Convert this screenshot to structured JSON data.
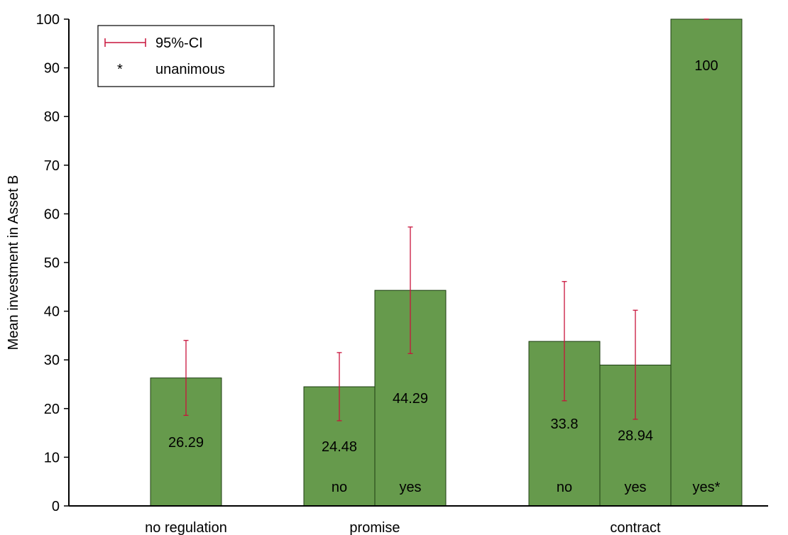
{
  "chart_data": {
    "type": "bar",
    "title": "",
    "xlabel": "",
    "ylabel": "Mean investment in Asset B",
    "ylim": [
      0,
      100
    ],
    "yticks": [
      0,
      10,
      20,
      30,
      40,
      50,
      60,
      70,
      80,
      90,
      100
    ],
    "grid": false,
    "legend": {
      "placement": "top-left",
      "entries": [
        {
          "symbol": "errorbar",
          "label": "95%-CI"
        },
        {
          "symbol": "*",
          "label": "unanimous"
        }
      ]
    },
    "groups": [
      {
        "label": "no regulation",
        "bars": [
          {
            "sub": "",
            "value": 26.29,
            "value_label": "26.29",
            "ci": [
              18.6,
              34.0
            ]
          }
        ]
      },
      {
        "label": "promise",
        "bars": [
          {
            "sub": "no",
            "value": 24.48,
            "value_label": "24.48",
            "ci": [
              17.5,
              31.5
            ]
          },
          {
            "sub": "yes",
            "value": 44.29,
            "value_label": "44.29",
            "ci": [
              31.3,
              57.3
            ]
          }
        ]
      },
      {
        "label": "contract",
        "bars": [
          {
            "sub": "no",
            "value": 33.8,
            "value_label": "33.8",
            "ci": [
              21.6,
              46.1
            ]
          },
          {
            "sub": "yes",
            "value": 28.94,
            "value_label": "28.94",
            "ci": [
              17.8,
              40.2
            ]
          },
          {
            "sub": "yes*",
            "value": 100,
            "value_label": "100",
            "ci": [
              100,
              100
            ]
          }
        ]
      }
    ],
    "colors": {
      "bar": "#669a4c",
      "bar_edge": "#1d3d12",
      "ci": "#c8143c"
    }
  }
}
